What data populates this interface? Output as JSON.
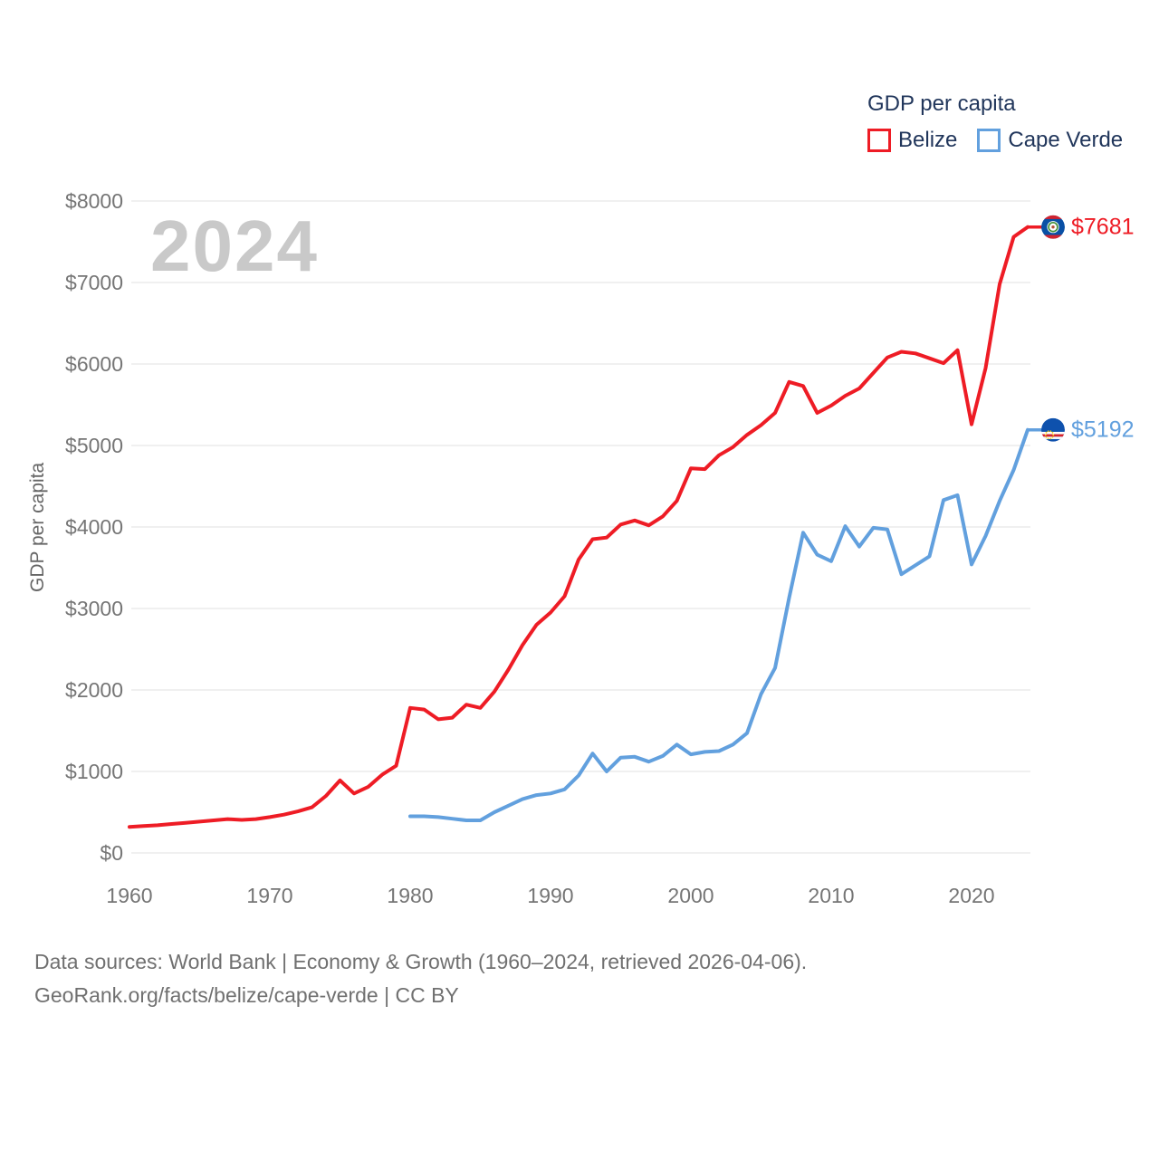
{
  "watermark_year": "2024",
  "footer": {
    "line1": "Data sources: World Bank | Economy & Growth (1960–2024, retrieved 2026-04-06).",
    "line2": "GeoRank.org/facts/belize/cape-verde | CC BY"
  },
  "colors": {
    "belize_red": "#ee1c25",
    "cape_verde_blue": "#62a0de",
    "legend_text": "#21365b",
    "axis_text": "#757575",
    "gridline": "#e8e8e8",
    "watermark_gray": "#c9c9c9"
  },
  "chart_data": {
    "type": "line",
    "title": "GDP per capita",
    "xlabel": "",
    "ylabel": "GDP per capita",
    "xlim": [
      1960,
      2024
    ],
    "ylim": [
      0,
      8000
    ],
    "grid": true,
    "legend_position": "top-right",
    "xticks": [
      1960,
      1970,
      1980,
      1990,
      2000,
      2010,
      2020
    ],
    "yticks": [
      0,
      1000,
      2000,
      3000,
      4000,
      5000,
      6000,
      7000,
      8000
    ],
    "ytick_labels": [
      "$0",
      "$1000",
      "$2000",
      "$3000",
      "$4000",
      "$5000",
      "$6000",
      "$7000",
      "$8000"
    ],
    "series": [
      {
        "name": "Belize",
        "color": "#ee1c25",
        "flag": "belize-flag",
        "end_label": "$7681",
        "x": [
          1960,
          1961,
          1962,
          1963,
          1964,
          1965,
          1966,
          1967,
          1968,
          1969,
          1970,
          1971,
          1972,
          1973,
          1974,
          1975,
          1976,
          1977,
          1978,
          1979,
          1980,
          1981,
          1982,
          1983,
          1984,
          1985,
          1986,
          1987,
          1988,
          1989,
          1990,
          1991,
          1992,
          1993,
          1994,
          1995,
          1996,
          1997,
          1998,
          1999,
          2000,
          2001,
          2002,
          2003,
          2004,
          2005,
          2006,
          2007,
          2008,
          2009,
          2010,
          2011,
          2012,
          2013,
          2014,
          2015,
          2016,
          2017,
          2018,
          2019,
          2020,
          2021,
          2022,
          2023,
          2024
        ],
        "values": [
          320,
          330,
          340,
          355,
          370,
          385,
          400,
          415,
          405,
          415,
          440,
          470,
          510,
          560,
          700,
          890,
          730,
          810,
          960,
          1070,
          1780,
          1760,
          1640,
          1660,
          1820,
          1780,
          1980,
          2250,
          2550,
          2800,
          2950,
          3150,
          3600,
          3850,
          3870,
          4030,
          4080,
          4020,
          4130,
          4320,
          4720,
          4710,
          4880,
          4980,
          5130,
          5250,
          5400,
          5780,
          5730,
          5400,
          5490,
          5610,
          5700,
          5890,
          6080,
          6150,
          6130,
          6070,
          6010,
          6170,
          5260,
          5950,
          6980,
          7560,
          7681
        ]
      },
      {
        "name": "Cape Verde",
        "color": "#62a0de",
        "flag": "cape-verde-flag",
        "end_label": "$5192",
        "x": [
          1980,
          1981,
          1982,
          1983,
          1984,
          1985,
          1986,
          1987,
          1988,
          1989,
          1990,
          1991,
          1992,
          1993,
          1994,
          1995,
          1996,
          1997,
          1998,
          1999,
          2000,
          2001,
          2002,
          2003,
          2004,
          2005,
          2006,
          2007,
          2008,
          2009,
          2010,
          2011,
          2012,
          2013,
          2014,
          2015,
          2016,
          2017,
          2018,
          2019,
          2020,
          2021,
          2022,
          2023,
          2024
        ],
        "values": [
          450,
          450,
          440,
          420,
          400,
          400,
          500,
          580,
          660,
          710,
          730,
          780,
          950,
          1220,
          1000,
          1170,
          1180,
          1120,
          1190,
          1330,
          1210,
          1240,
          1250,
          1330,
          1470,
          1950,
          2270,
          3130,
          3930,
          3660,
          3580,
          4010,
          3760,
          3990,
          3970,
          3420,
          3530,
          3640,
          4330,
          4390,
          3540,
          3890,
          4320,
          4700,
          5192
        ]
      }
    ]
  }
}
